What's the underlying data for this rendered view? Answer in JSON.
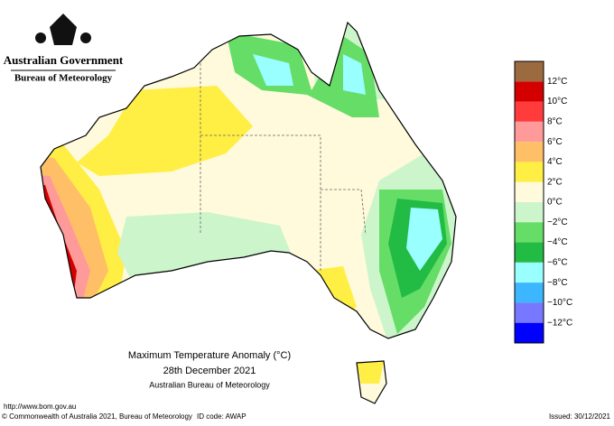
{
  "header": {
    "government": "Australian Government",
    "bureau": "Bureau of Meteorology"
  },
  "legend": {
    "labels": [
      "12°C",
      "10°C",
      "8°C",
      "6°C",
      "4°C",
      "2°C",
      "0°C",
      "−2°C",
      "−4°C",
      "−6°C",
      "−8°C",
      "−10°C",
      "−12°C"
    ],
    "colors": [
      "#9c6a3f",
      "#d40000",
      "#ff3b3b",
      "#ff9a9a",
      "#ffbf66",
      "#ffee44",
      "#fffadb",
      "#ccf5cc",
      "#66dd66",
      "#22bb44",
      "#99ffff",
      "#3bb6ff",
      "#7777ff",
      "#0000ff"
    ]
  },
  "caption": {
    "title": "Maximum Temperature Anomaly (°C)",
    "date": "28th December 2021",
    "source": "Australian Bureau of Meteorology"
  },
  "footer": {
    "url": "http://www.bom.gov.au",
    "copyright": "© Commonwealth of Australia 2021, Bureau of Meteorology",
    "id_code": "ID code: AWAP",
    "issued": "Issued: 30/12/2021"
  }
}
